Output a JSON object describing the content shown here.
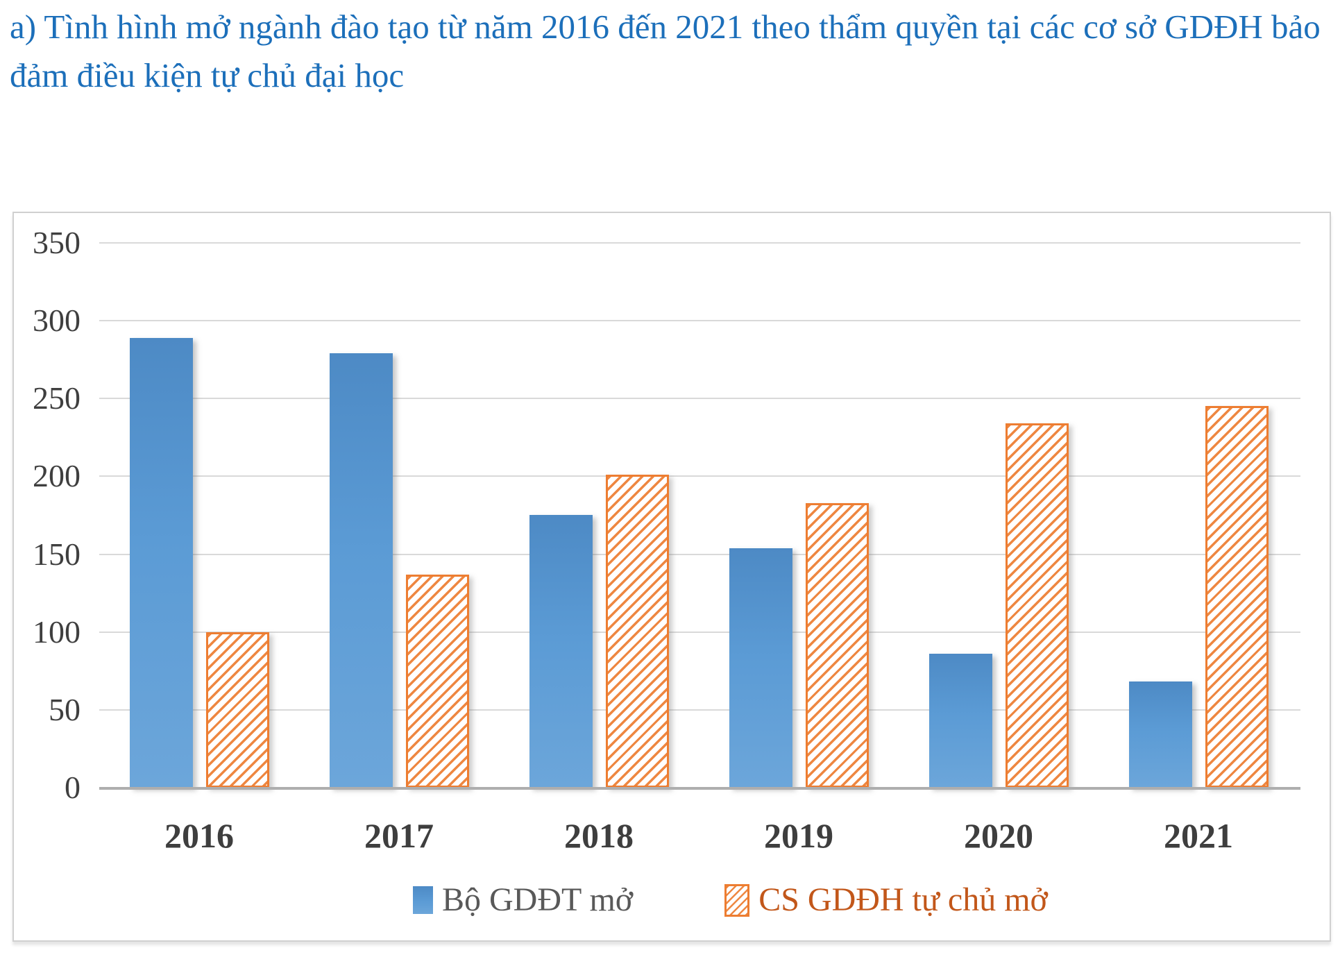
{
  "caption": "a) Tình hình mở ngành đào tạo từ năm 2016 đến 2021 theo thẩm quyền tại các cơ sở GDĐH bảo đảm điều kiện tự chủ đại học",
  "colors": {
    "caption_blue": "#1C6FBA",
    "series1_blue": "#5B9BD5",
    "series2_orange": "#ED7D31",
    "legend_text_gray": "#595959",
    "legend_text_orange": "#C2571A",
    "gridline_gray": "#D9D9D9",
    "axis_line_gray": "#AEAEAE",
    "tick_text_gray": "#3F3F3F"
  },
  "chart_data": {
    "type": "bar",
    "categories": [
      "2016",
      "2017",
      "2018",
      "2019",
      "2020",
      "2021"
    ],
    "series": [
      {
        "name": "Bộ GDĐT mở",
        "color": "#5B9BD5",
        "pattern": "solid",
        "values": [
          289,
          279,
          175,
          154,
          86,
          68
        ]
      },
      {
        "name": "CS GDĐH tự chủ mở",
        "color": "#ED7D31",
        "pattern": "diagonal-hatch",
        "values": [
          100,
          137,
          201,
          183,
          234,
          245
        ]
      }
    ],
    "title": "",
    "xlabel": "",
    "ylabel": "",
    "ylim": [
      0,
      350
    ],
    "ytick_step": 50,
    "yticks": [
      "0",
      "50",
      "100",
      "150",
      "200",
      "250",
      "300",
      "350"
    ],
    "grid": "horizontal",
    "legend_position": "bottom"
  }
}
